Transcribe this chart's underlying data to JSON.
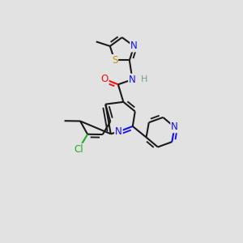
{
  "bg_color": "#e2e2e2",
  "bond_color": "#1a1a1a",
  "bond_width": 1.5,
  "dbo": 0.06,
  "atom_colors": {
    "N": "#1010ee",
    "O": "#ee1010",
    "S": "#b8960a",
    "Cl": "#22aa22",
    "H": "#7a9a9a",
    "C": "#1a1a1a"
  },
  "fs": 8.5
}
